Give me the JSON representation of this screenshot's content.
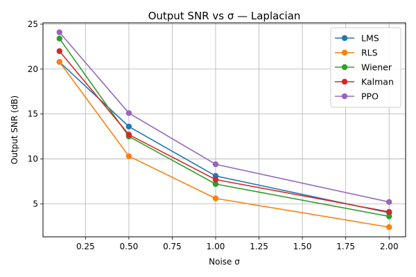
{
  "chart_data": {
    "type": "line",
    "title": "Output SNR vs σ  —  Laplacian",
    "xlabel": "Noise σ",
    "ylabel": "Output SNR (dB)",
    "x": [
      0.1,
      0.5,
      1.0,
      2.0
    ],
    "xlim": [
      0.005,
      2.095
    ],
    "ylim": [
      1.32,
      25.15
    ],
    "xticks": [
      0.25,
      0.5,
      0.75,
      1.0,
      1.25,
      1.5,
      1.75,
      2.0
    ],
    "xtick_labels": [
      "0.25",
      "0.50",
      "0.75",
      "1.00",
      "1.25",
      "1.50",
      "1.75",
      "2.00"
    ],
    "yticks": [
      5,
      10,
      15,
      20,
      25
    ],
    "ytick_labels": [
      "5",
      "10",
      "15",
      "20",
      "25"
    ],
    "grid": true,
    "legend_position": "top-right",
    "series": [
      {
        "name": "LMS",
        "color": "#1f77b4",
        "values": [
          20.8,
          13.6,
          8.1,
          4.0
        ]
      },
      {
        "name": "RLS",
        "color": "#ff7f0e",
        "values": [
          20.8,
          10.3,
          5.6,
          2.4
        ]
      },
      {
        "name": "Wiener",
        "color": "#2ca02c",
        "values": [
          23.4,
          12.5,
          7.2,
          3.6
        ]
      },
      {
        "name": "Kalman",
        "color": "#d62728",
        "values": [
          22.0,
          12.7,
          7.7,
          4.1
        ]
      },
      {
        "name": "PPO",
        "color": "#9467bd",
        "values": [
          24.1,
          15.1,
          9.4,
          5.2
        ]
      }
    ]
  }
}
